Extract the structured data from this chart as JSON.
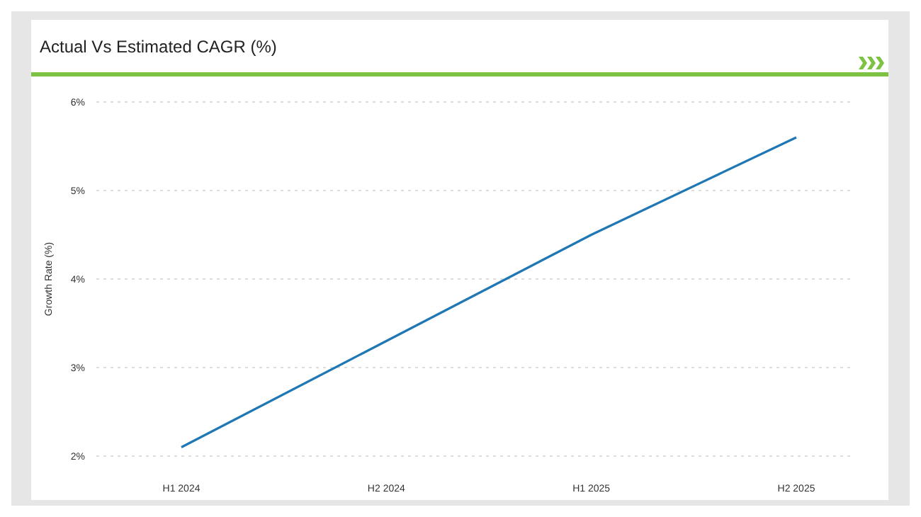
{
  "chart_data": {
    "type": "line",
    "title": "Actual Vs Estimated CAGR (%)",
    "ylabel": "Growth Rate (%)",
    "categories": [
      "H1 2024",
      "H2 2024",
      "H1 2025",
      "H2 2025"
    ],
    "series": [
      {
        "color": "#1f77b4",
        "values": [
          2.1,
          3.3,
          4.5,
          5.6
        ]
      }
    ],
    "ylim": [
      2,
      6
    ],
    "yticks": [
      {
        "value": 2,
        "label": "2%"
      },
      {
        "value": 3,
        "label": "3%"
      },
      {
        "value": 4,
        "label": "4%"
      },
      {
        "value": 5,
        "label": "5%"
      },
      {
        "value": 6,
        "label": "6%"
      }
    ],
    "grid": "y",
    "legend": false,
    "marker": "none",
    "line_style": "solid"
  }
}
